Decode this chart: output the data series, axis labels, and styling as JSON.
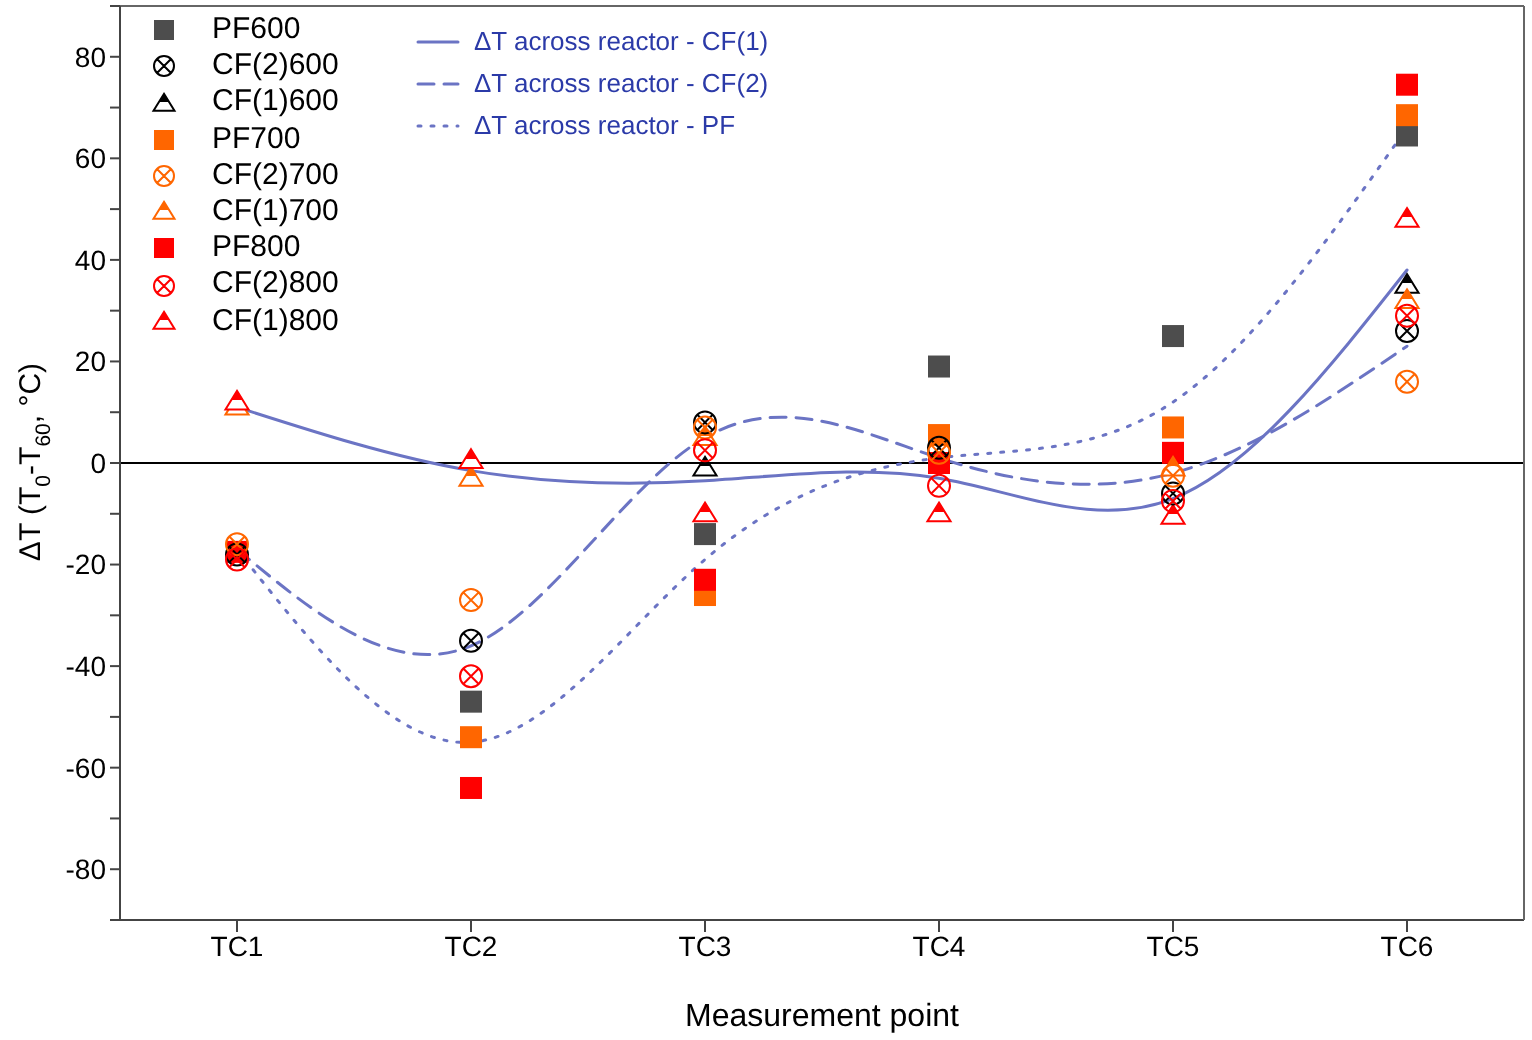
{
  "chart_data": {
    "type": "scatter",
    "xlabel": "Measurement point",
    "ylabel": "ΔT (T$_{0}$-T$_{60}$, °C)",
    "categories": [
      "TC1",
      "TC2",
      "TC3",
      "TC4",
      "TC5",
      "TC6"
    ],
    "ylim": [
      -90,
      90
    ],
    "yticks": [
      {
        "value": -70,
        "label": null
      },
      -80,
      -60,
      {
        "value": -50,
        "label": null
      },
      -40,
      {
        "value": -30,
        "label": null
      },
      -20,
      {
        "value": -10,
        "label": null
      },
      0,
      {
        "value": 10,
        "label": null
      },
      20,
      {
        "value": 30,
        "label": null
      },
      40,
      {
        "value": 50,
        "label": null
      },
      60,
      {
        "value": 70,
        "label": null
      },
      80,
      {
        "value": -90,
        "label": null
      },
      {
        "value": 90,
        "label": null
      }
    ],
    "legend": "top left",
    "ref_lines": [
      {
        "axis": "y",
        "value": 0,
        "color": "#000000",
        "line_style": "solid"
      }
    ],
    "series": [
      {
        "name": "PF600",
        "marker": "square",
        "color": "#4d4d4d",
        "values": [
          null,
          -47,
          -14,
          19,
          25,
          64.5
        ]
      },
      {
        "name": "CF(2)600",
        "marker": "cross",
        "color": "#000000",
        "values": [
          -18,
          -35,
          8,
          3,
          -6,
          26
        ]
      },
      {
        "name": "CF(1)600",
        "marker": "triangle",
        "color": "#000000",
        "values": [
          null,
          null,
          -1,
          null,
          null,
          35
        ]
      },
      {
        "name": "PF700",
        "marker": "square",
        "color": "#ff6600",
        "values": [
          null,
          -54,
          -26,
          5.5,
          7,
          68.5
        ]
      },
      {
        "name": "CF(2)700",
        "marker": "cross",
        "color": "#ff6600",
        "values": [
          -16,
          -27,
          7,
          2,
          -2.5,
          16
        ]
      },
      {
        "name": "CF(1)700",
        "marker": "triangle",
        "color": "#ff6600",
        "values": [
          11,
          -3,
          5,
          null,
          -1,
          32
        ]
      },
      {
        "name": "PF800",
        "marker": "square",
        "color": "#ff0000",
        "values": [
          -17.5,
          -64,
          -23,
          0,
          2,
          74.5
        ]
      },
      {
        "name": "CF(2)800",
        "marker": "cross",
        "color": "#ff0000",
        "values": [
          -19,
          -42,
          2.5,
          -4.5,
          -7.5,
          29
        ]
      },
      {
        "name": "CF(1)800",
        "marker": "triangle",
        "color": "#ff0000",
        "values": [
          12,
          0.5,
          -10,
          -10,
          -10.5,
          48
        ]
      },
      {
        "name": "ΔT across reactor - CF(1)",
        "type": "line",
        "line_style": "solid",
        "color": "#6b74c4",
        "values": [
          11,
          -1.5,
          -3.5,
          -3,
          -7,
          38
        ]
      },
      {
        "name": "ΔT across reactor - CF(2)",
        "type": "line",
        "line_style": "dashed",
        "color": "#6b74c4",
        "values": [
          -17,
          -36,
          5,
          1,
          -2,
          23
        ]
      },
      {
        "name": "ΔT across reactor - PF",
        "type": "line",
        "line_style": "dotted",
        "color": "#6b74c4",
        "values": [
          -17,
          -55,
          -19,
          1,
          12,
          66
        ]
      }
    ]
  }
}
